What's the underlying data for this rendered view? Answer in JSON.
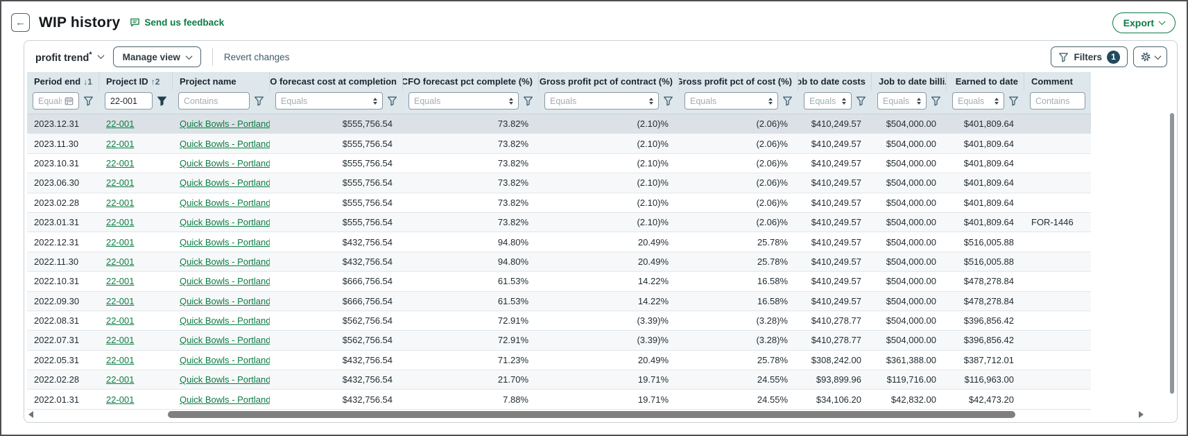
{
  "header": {
    "back_icon": "←",
    "title": "WIP history",
    "feedback_label": "Send us feedback",
    "export_label": "Export"
  },
  "toolbar": {
    "view_name": "profit trend",
    "view_modified_marker": "*",
    "manage_view_label": "Manage view",
    "revert_label": "Revert changes",
    "filters_label": "Filters",
    "filters_count": "1"
  },
  "colors": {
    "brand_green": "#0c7b43",
    "slate": "#44606e",
    "header_bg": "#dde7ec",
    "selected_row_bg": "#dbe1e6",
    "badge_bg": "#234a5c"
  },
  "icons": {
    "back": "arrow-left",
    "feedback": "speech-bubble",
    "export_caret": "chevron-down",
    "filters": "funnel",
    "settings": "gear",
    "date_filter": "calendar",
    "sort_descending": "↓",
    "sort_ascending": "↑"
  },
  "table": {
    "columns": [
      {
        "label": "Period end",
        "header_align": "left",
        "align": "left",
        "sort_glyph": "↓",
        "sort_order": "1",
        "filter": {
          "kind": "date",
          "placeholder": "Equals",
          "has_funnel": true
        }
      },
      {
        "label": "Project ID",
        "header_align": "left",
        "align": "left",
        "sort_glyph": "↑",
        "sort_order": "2",
        "link": true,
        "filter": {
          "kind": "text",
          "value": "22-001",
          "has_funnel": true,
          "active": true
        }
      },
      {
        "label": "Project name",
        "header_align": "left",
        "align": "left",
        "link": true,
        "filter": {
          "kind": "text",
          "placeholder": "Contains",
          "has_funnel": true
        }
      },
      {
        "label": "CFO forecast cost at completion",
        "header_align": "right",
        "align": "right",
        "filter": {
          "kind": "select",
          "placeholder": "Equals",
          "has_funnel": true
        }
      },
      {
        "label": "CFO forecast pct complete (%)",
        "header_align": "right",
        "align": "right",
        "filter": {
          "kind": "select",
          "placeholder": "Equals",
          "has_funnel": true
        }
      },
      {
        "label": "Gross profit pct of contract (%)",
        "header_align": "right",
        "align": "right",
        "filter": {
          "kind": "select",
          "placeholder": "Equals",
          "has_funnel": true
        }
      },
      {
        "label": "Gross profit pct of cost (%)",
        "header_align": "right",
        "align": "right",
        "filter": {
          "kind": "select",
          "placeholder": "Equals",
          "has_funnel": true
        }
      },
      {
        "label": "Job to date costs",
        "header_align": "right",
        "align": "right",
        "filter": {
          "kind": "select",
          "placeholder": "Equals",
          "has_funnel": true
        }
      },
      {
        "label": "Job to date billi...",
        "header_align": "left",
        "align": "right",
        "filter": {
          "kind": "select",
          "placeholder": "Equals",
          "has_funnel": true
        }
      },
      {
        "label": "Earned to date",
        "header_align": "right",
        "align": "right",
        "filter": {
          "kind": "select",
          "placeholder": "Equals",
          "has_funnel": true
        }
      },
      {
        "label": "Comment",
        "header_align": "left",
        "align": "left",
        "filter": {
          "kind": "text",
          "placeholder": "Contains",
          "has_funnel": false
        }
      }
    ],
    "rows": [
      {
        "selected": true,
        "cells": [
          "2023.12.31",
          "22-001",
          "Quick Bowls - Portland",
          "$555,756.54",
          "73.82%",
          "(2.10)%",
          "(2.06)%",
          "$410,249.57",
          "$504,000.00",
          "$401,809.64",
          ""
        ]
      },
      {
        "cells": [
          "2023.11.30",
          "22-001",
          "Quick Bowls - Portland",
          "$555,756.54",
          "73.82%",
          "(2.10)%",
          "(2.06)%",
          "$410,249.57",
          "$504,000.00",
          "$401,809.64",
          ""
        ]
      },
      {
        "cells": [
          "2023.10.31",
          "22-001",
          "Quick Bowls - Portland",
          "$555,756.54",
          "73.82%",
          "(2.10)%",
          "(2.06)%",
          "$410,249.57",
          "$504,000.00",
          "$401,809.64",
          ""
        ]
      },
      {
        "cells": [
          "2023.06.30",
          "22-001",
          "Quick Bowls - Portland",
          "$555,756.54",
          "73.82%",
          "(2.10)%",
          "(2.06)%",
          "$410,249.57",
          "$504,000.00",
          "$401,809.64",
          ""
        ]
      },
      {
        "cells": [
          "2023.02.28",
          "22-001",
          "Quick Bowls - Portland",
          "$555,756.54",
          "73.82%",
          "(2.10)%",
          "(2.06)%",
          "$410,249.57",
          "$504,000.00",
          "$401,809.64",
          ""
        ]
      },
      {
        "cells": [
          "2023.01.31",
          "22-001",
          "Quick Bowls - Portland",
          "$555,756.54",
          "73.82%",
          "(2.10)%",
          "(2.06)%",
          "$410,249.57",
          "$504,000.00",
          "$401,809.64",
          "FOR-1446"
        ]
      },
      {
        "cells": [
          "2022.12.31",
          "22-001",
          "Quick Bowls - Portland",
          "$432,756.54",
          "94.80%",
          "20.49%",
          "25.78%",
          "$410,249.57",
          "$504,000.00",
          "$516,005.88",
          ""
        ]
      },
      {
        "cells": [
          "2022.11.30",
          "22-001",
          "Quick Bowls - Portland",
          "$432,756.54",
          "94.80%",
          "20.49%",
          "25.78%",
          "$410,249.57",
          "$504,000.00",
          "$516,005.88",
          ""
        ]
      },
      {
        "cells": [
          "2022.10.31",
          "22-001",
          "Quick Bowls - Portland",
          "$666,756.54",
          "61.53%",
          "14.22%",
          "16.58%",
          "$410,249.57",
          "$504,000.00",
          "$478,278.84",
          ""
        ]
      },
      {
        "cells": [
          "2022.09.30",
          "22-001",
          "Quick Bowls - Portland",
          "$666,756.54",
          "61.53%",
          "14.22%",
          "16.58%",
          "$410,249.57",
          "$504,000.00",
          "$478,278.84",
          ""
        ]
      },
      {
        "cells": [
          "2022.08.31",
          "22-001",
          "Quick Bowls - Portland",
          "$562,756.54",
          "72.91%",
          "(3.39)%",
          "(3.28)%",
          "$410,278.77",
          "$504,000.00",
          "$396,856.42",
          ""
        ]
      },
      {
        "cells": [
          "2022.07.31",
          "22-001",
          "Quick Bowls - Portland",
          "$562,756.54",
          "72.91%",
          "(3.39)%",
          "(3.28)%",
          "$410,278.77",
          "$504,000.00",
          "$396,856.42",
          ""
        ]
      },
      {
        "cells": [
          "2022.05.31",
          "22-001",
          "Quick Bowls - Portland",
          "$432,756.54",
          "71.23%",
          "20.49%",
          "25.78%",
          "$308,242.00",
          "$361,388.00",
          "$387,712.01",
          ""
        ]
      },
      {
        "cells": [
          "2022.02.28",
          "22-001",
          "Quick Bowls - Portland",
          "$432,756.54",
          "21.70%",
          "19.71%",
          "24.55%",
          "$93,899.96",
          "$119,716.00",
          "$116,963.00",
          ""
        ]
      },
      {
        "cells": [
          "2022.01.31",
          "22-001",
          "Quick Bowls - Portland",
          "$432,756.54",
          "7.88%",
          "19.71%",
          "24.55%",
          "$34,106.20",
          "$42,832.00",
          "$42,473.20",
          ""
        ]
      }
    ]
  }
}
